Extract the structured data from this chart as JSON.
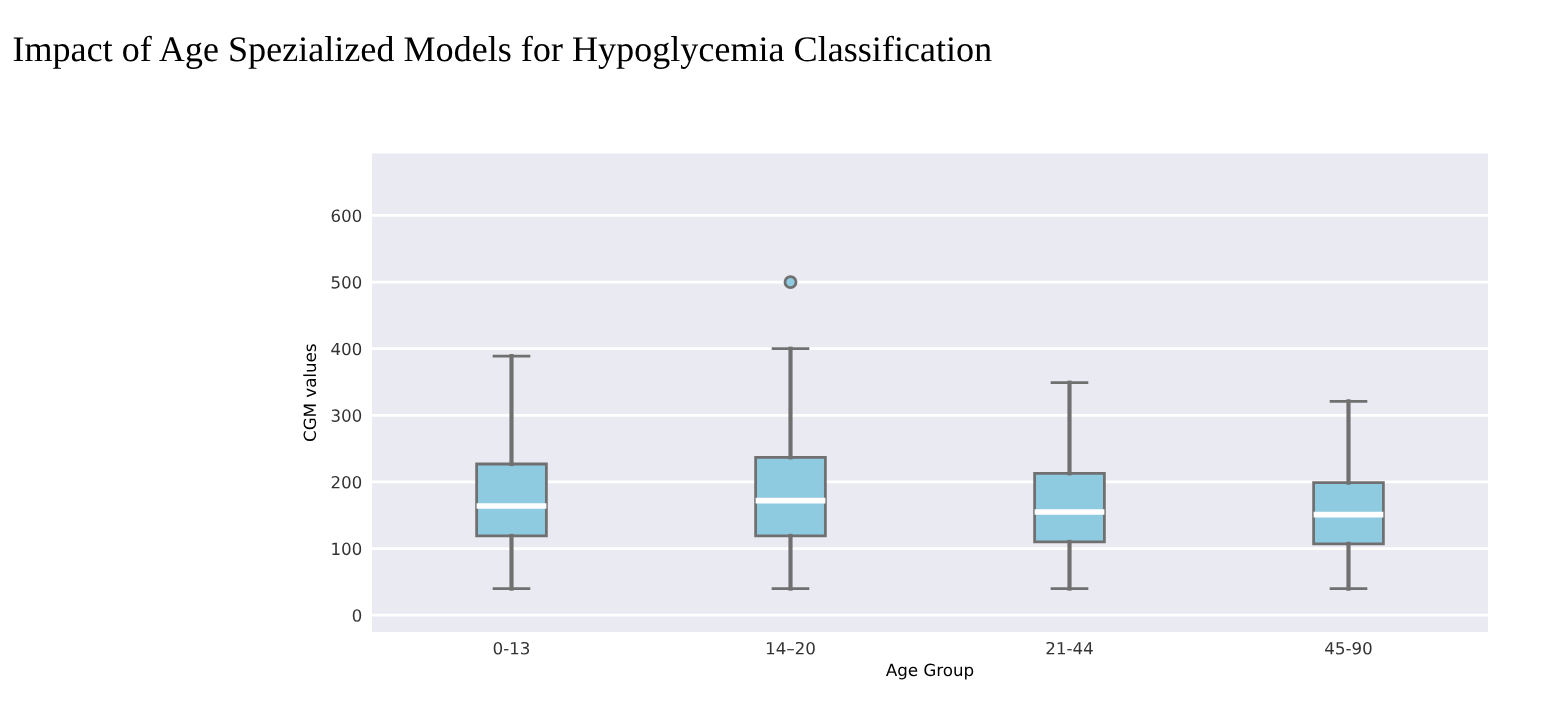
{
  "chart_data": {
    "type": "box",
    "title": "Impact of Age Spezialized Models for Hypoglycemia Classification",
    "xlabel": "Age Group",
    "ylabel": "CGM values",
    "categories": [
      "0-13",
      "14–20",
      "21-44",
      "45-90"
    ],
    "boxes": [
      {
        "low": 40,
        "q1": 119,
        "median": 164,
        "q3": 227,
        "high": 389
      },
      {
        "low": 40,
        "q1": 119,
        "median": 172,
        "q3": 237,
        "high": 400,
        "outliers": [
          500
        ]
      },
      {
        "low": 40,
        "q1": 110,
        "median": 155,
        "q3": 213,
        "high": 349
      },
      {
        "low": 40,
        "q1": 107,
        "median": 151,
        "q3": 199,
        "high": 321
      }
    ],
    "color": "#8ecae0",
    "ylim": [
      -25,
      693
    ],
    "yticks": [
      0,
      100,
      200,
      300,
      400,
      500,
      600
    ],
    "grid": "y"
  }
}
